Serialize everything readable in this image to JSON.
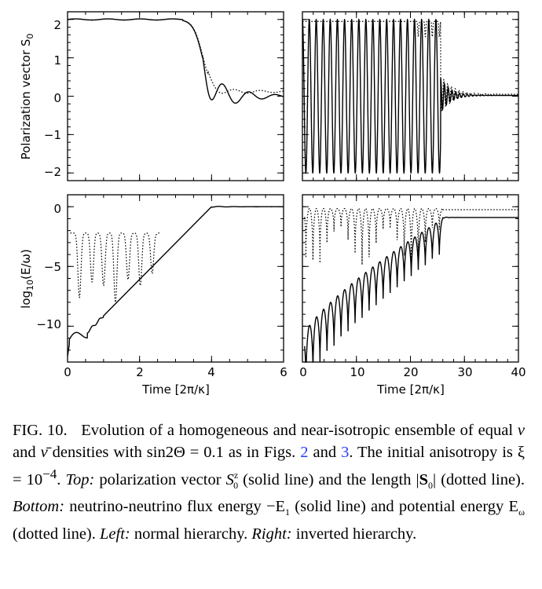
{
  "figure": {
    "xlabel": "Time [2π/κ]",
    "ylabel_top": "Polarization vector S",
    "ylabel_top_sub": "0",
    "ylabel_bottom_pre": "log",
    "ylabel_bottom_sub": "10",
    "ylabel_bottom_post": "(E/ω)",
    "left_xticks": [
      "0",
      "2",
      "4",
      "6"
    ],
    "right_xticks": [
      "0",
      "10",
      "20",
      "30",
      "40"
    ],
    "top_yticks": [
      "2",
      "1",
      "0",
      "−1",
      "−2"
    ],
    "bottom_yticks": [
      "0",
      "−5",
      "−10"
    ]
  },
  "chart_data": [
    {
      "type": "line",
      "panel": "top-left",
      "xlim": [
        0,
        6
      ],
      "ylim": [
        -2.2,
        2.2
      ],
      "series": [
        {
          "style": "solid",
          "x": [
            0,
            1,
            2,
            3,
            3.3,
            3.6,
            3.8,
            3.95,
            4.05,
            4.2,
            4.4,
            4.6,
            4.8,
            5.0,
            5.2,
            5.4,
            5.6,
            5.8,
            6.0
          ],
          "y": [
            2,
            2,
            2,
            2,
            1.9,
            1.3,
            0.5,
            -0.3,
            -0.42,
            -0.1,
            0.25,
            -0.2,
            0.15,
            -0.1,
            0.05,
            0.05,
            0.0,
            0.05,
            0.02
          ]
        },
        {
          "style": "dotted",
          "x": [
            0,
            1,
            2,
            3,
            3.3,
            3.6,
            3.8,
            4.0,
            4.2,
            4.5,
            5.0,
            5.5,
            6.0
          ],
          "y": [
            2,
            2,
            2,
            2,
            1.9,
            1.3,
            0.6,
            0.25,
            0.1,
            0.12,
            0.1,
            0.08,
            0.05
          ]
        }
      ]
    },
    {
      "type": "line",
      "panel": "top-right",
      "xlim": [
        0,
        40
      ],
      "ylim": [
        -2.2,
        2.2
      ],
      "series": [
        {
          "style": "solid",
          "description_values": {
            "x": [
              0,
              25.5,
              27,
              30,
              40
            ],
            "y": [
              2,
              -2,
              0.4,
              0.05,
              0.0
            ]
          }
        },
        {
          "style": "dotted",
          "description_values": {
            "x": [
              0,
              25.5,
              27,
              30,
              40
            ],
            "y": [
              2,
              2,
              0.5,
              0.05,
              0.0
            ]
          }
        }
      ]
    },
    {
      "type": "line",
      "panel": "bottom-left",
      "xlim": [
        0,
        6
      ],
      "ylim": [
        -13,
        1
      ],
      "series": [
        {
          "style": "solid",
          "x": [
            0,
            0.1,
            0.3,
            0.6,
            0.8,
            1.0,
            2.0,
            3.0,
            4.0,
            4.2,
            4.5,
            5,
            6
          ],
          "y": [
            -12,
            -11.5,
            -10.8,
            -10.3,
            -9.3,
            -8.6,
            -6.0,
            -3.4,
            -0.2,
            0,
            -0.1,
            0,
            0
          ]
        },
        {
          "style": "dotted",
          "x": [
            0.1,
            0.35,
            0.5,
            0.65,
            0.8,
            1.0,
            1.25,
            1.4,
            1.6,
            1.9,
            2.2,
            2.6
          ],
          "y": [
            -2.2,
            -7.6,
            -2.3,
            -2.2,
            -6.4,
            -2.2,
            -8,
            -2.2,
            -2.3,
            -6,
            -2.3,
            -2.3
          ]
        }
      ]
    },
    {
      "type": "line",
      "panel": "bottom-right",
      "xlim": [
        0,
        40
      ],
      "ylim": [
        -13,
        1
      ],
      "series": [
        {
          "style": "solid",
          "x": [
            0.3,
            2,
            5,
            10,
            15,
            20,
            24,
            26,
            28,
            30,
            40
          ],
          "y": [
            -11,
            -8.5,
            -6.5,
            -4.5,
            -3.2,
            -2.2,
            -1.5,
            -1,
            -1,
            -1,
            -1
          ]
        },
        {
          "style": "dotted",
          "x": [
            0,
            10,
            20,
            25,
            26,
            28,
            30,
            40
          ],
          "y": [
            -0.1,
            -0.1,
            -0.1,
            -0.2,
            -0.5,
            -0.3,
            -0.3,
            -0.3
          ]
        }
      ]
    }
  ],
  "caption": {
    "label": "FIG. 10.",
    "t1": "Evolution of a homogeneous and near-isotropic ensemble of equal ",
    "nu": "ν",
    "t2": " and ",
    "nubar": "ν̄",
    "t3": " densities with sin2Θ = 0.1 as in Figs. ",
    "ref1": "2",
    "t4": " and ",
    "ref2": "3",
    "t5": ". The initial anisotropy is ξ = 10",
    "t5sup": "−4",
    "t6": ". ",
    "top_label": "Top:",
    "t7": " polarization vector ",
    "s0z": "S",
    "s0z_sup": "z",
    "s0z_sub": "0",
    "t8": " (solid line) and the length |",
    "s0b": "S",
    "s0b_sub": "0",
    "t9": "| (dotted line). ",
    "bottom_label": "Bottom:",
    "t10": " neutrino-neutrino flux energy −E",
    "e1_sub": "1",
    "t11": " (solid line) and potential energy E",
    "ew_sub": "ω",
    "t12": " (dotted line). ",
    "left_label": "Left:",
    "t13": " normal hierarchy. ",
    "right_label": "Right:",
    "t14": " inverted hierarchy."
  }
}
